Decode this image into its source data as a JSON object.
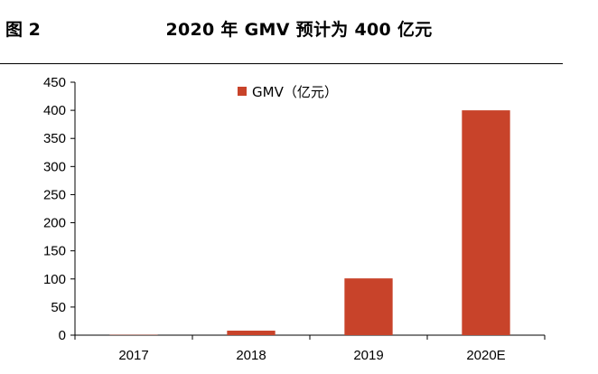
{
  "header": {
    "figure_label": "图 2",
    "title": "2020 年 GMV 预计为 400 亿元"
  },
  "chart_data": {
    "type": "bar",
    "categories": [
      "2017",
      "2018",
      "2019",
      "2020E"
    ],
    "series": [
      {
        "name": "GMV（亿元）",
        "values": [
          0.5,
          8,
          101,
          400
        ],
        "color": "#C8432A"
      }
    ],
    "ylim": [
      0,
      450
    ],
    "yticks": [
      0,
      50,
      100,
      150,
      200,
      250,
      300,
      350,
      400,
      450
    ],
    "legend_position": "top-center",
    "grid": false
  }
}
